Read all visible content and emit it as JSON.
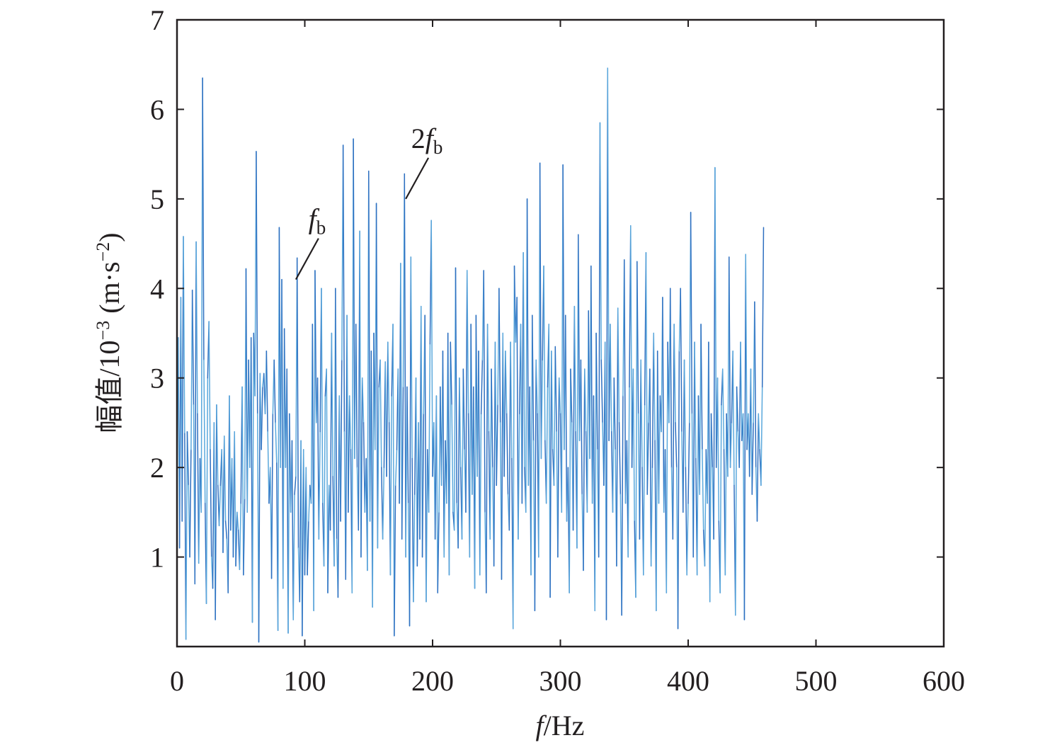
{
  "chart_data": {
    "type": "line",
    "title": "",
    "xlabel": {
      "italic": "f",
      "rest": "/Hz"
    },
    "ylabel": {
      "main": "幅值/10",
      "exp": "−3",
      "unit_open": " (m·s",
      "unit_exp": "−2",
      "unit_close": ")"
    },
    "xlim": [
      0,
      600
    ],
    "ylim": [
      0,
      7
    ],
    "xticks": [
      0,
      100,
      200,
      300,
      400,
      500,
      600
    ],
    "yticks": [
      1,
      2,
      3,
      4,
      5,
      6,
      7
    ],
    "grid": false,
    "legend": "none",
    "colors": {
      "dark": "#2e6fc0",
      "light": "#5aa8dc",
      "axis": "#231f20"
    },
    "annotations": [
      {
        "base": "",
        "italic": "f",
        "sub": "b",
        "x": 93,
        "y": 4.1
      },
      {
        "base": "2",
        "italic": "f",
        "sub": "b",
        "x": 179,
        "y": 5.0
      }
    ],
    "series": [
      {
        "x_step": 1.0,
        "y": [
          1.72,
          3.45,
          1.1,
          3.9,
          1.4,
          4.58,
          2.38,
          0.08,
          2.4,
          1.8,
          1.0,
          2.2,
          3.98,
          2.7,
          0.7,
          4.52,
          2.6,
          0.93,
          2.1,
          1.5,
          6.35,
          3.2,
          1.6,
          0.48,
          3.0,
          3.63,
          2.2,
          1.0,
          0.65,
          2.5,
          0.3,
          2.7,
          1.8,
          1.35,
          1.8,
          2.2,
          1.05,
          2.35,
          1.4,
          1.2,
          0.6,
          2.8,
          1.3,
          2.1,
          1.0,
          2.4,
          0.9,
          1.5,
          1.3,
          0.86,
          1.6,
          2.9,
          0.8,
          1.65,
          4.22,
          1.5,
          3.2,
          2.0,
          3.45,
          0.27,
          3.5,
          2.8,
          5.53,
          2.6,
          0.05,
          3.05,
          2.2,
          2.9,
          3.05,
          2.6,
          3.3,
          2.4,
          1.6,
          2.0,
          0.76,
          2.6,
          3.2,
          2.5,
          2.05,
          0.18,
          4.68,
          2.0,
          4.1,
          0.65,
          3.55,
          2.0,
          3.1,
          0.15,
          2.6,
          1.5,
          2.3,
          0.3,
          1.7,
          1.9,
          4.34,
          1.1,
          0.5,
          2.3,
          0.12,
          2.2,
          0.8,
          2.0,
          0.8,
          1.4,
          1.8,
          1.6,
          3.6,
          0.4,
          4.2,
          2.5,
          3.0,
          1.2,
          2.4,
          4.0,
          1.6,
          0.9,
          2.8,
          3.1,
          0.6,
          1.8,
          1.3,
          3.5,
          1.9,
          0.9,
          4.0,
          1.2,
          0.55,
          2.8,
          1.4,
          3.2,
          5.6,
          2.4,
          0.75,
          3.7,
          1.5,
          2.8,
          2.2,
          0.6,
          5.67,
          2.1,
          3.6,
          2.0,
          1.3,
          4.64,
          1.0,
          3.0,
          2.5,
          1.5,
          2.1,
          0.85,
          5.31,
          1.4,
          3.3,
          0.44,
          3.5,
          2.2,
          4.95,
          1.1,
          2.9,
          3.2,
          2.0,
          1.2,
          2.0,
          3.18,
          1.9,
          3.4,
          2.5,
          0.8,
          2.8,
          3.6,
          0.12,
          1.8,
          2.2,
          3.1,
          1.6,
          4.28,
          1.2,
          2.9,
          5.28,
          1.0,
          2.9,
          1.6,
          0.23,
          4.35,
          2.1,
          0.5,
          1.7,
          3.0,
          0.9,
          2.5,
          1.2,
          3.8,
          1.0,
          2.6,
          3.7,
          0.5,
          2.2,
          1.5,
          3.38,
          4.76,
          1.9,
          2.5,
          1.2,
          2.8,
          0.6,
          1.5,
          2.9,
          1.8,
          3.3,
          1.0,
          2.3,
          1.6,
          3.5,
          0.8,
          3.4,
          2.7,
          1.5,
          1.3,
          4.23,
          1.6,
          1.1,
          3.0,
          2.0,
          1.2,
          3.1,
          2.2,
          1.5,
          4.2,
          2.6,
          1.0,
          3.6,
          1.7,
          2.9,
          0.65,
          3.7,
          1.9,
          3.3,
          0.8,
          2.6,
          3.2,
          4.2,
          1.5,
          0.6,
          3.6,
          2.4,
          1.2,
          3.1,
          2.0,
          0.9,
          3.4,
          1.8,
          2.7,
          4.0,
          2.5,
          0.75,
          3.5,
          1.9,
          3.3,
          2.6,
          1.7,
          1.3,
          3.4,
          2.1,
          0.2,
          4.25,
          3.4,
          3.9,
          1.2,
          2.6,
          3.6,
          1.6,
          4.4,
          2.0,
          1.5,
          5.0,
          1.8,
          2.9,
          0.8,
          3.7,
          2.3,
          0.4,
          3.2,
          2.6,
          1.0,
          5.4,
          2.1,
          3.2,
          4.25,
          2.3,
          1.6,
          2.9,
          3.6,
          0.55,
          3.3,
          2.2,
          1.8,
          3.35,
          2.4,
          1.0,
          3.0,
          2.6,
          1.5,
          5.38,
          2.2,
          3.7,
          1.4,
          2.0,
          0.6,
          3.1,
          2.5,
          1.3,
          3.8,
          2.4,
          1.1,
          4.6,
          2.3,
          3.2,
          1.7,
          0.85,
          3.1,
          2.4,
          1.5,
          3.75,
          2.1,
          4.25,
          1.6,
          2.8,
          0.4,
          3.5,
          2.2,
          1.0,
          5.85,
          3.2,
          2.5,
          1.8,
          3.4,
          0.3,
          6.46,
          2.3,
          3.6,
          2.4,
          1.5,
          3.0,
          2.2,
          0.9,
          3.78,
          2.5,
          1.7,
          0.35,
          2.8,
          4.32,
          1.6,
          2.3,
          1.0,
          2.9,
          4.7,
          2.0,
          3.1,
          1.4,
          0.55,
          4.3,
          2.6,
          1.2,
          3.2,
          2.0,
          0.8,
          2.7,
          4.4,
          1.7,
          2.5,
          3.1,
          0.9,
          2.0,
          3.5,
          2.3,
          0.4,
          3.3,
          1.6,
          2.8,
          2.4,
          3.9,
          1.5,
          2.2,
          0.6,
          3.4,
          2.5,
          4.0,
          2.0,
          1.2,
          3.6,
          2.5,
          2.0,
          0.2,
          3.3,
          4.0,
          2.4,
          1.5,
          3.2,
          2.0,
          0.8,
          1.6,
          2.5,
          4.85,
          2.6,
          1.0,
          3.4,
          2.1,
          0.8,
          2.8,
          1.7,
          3.6,
          2.2,
          1.3,
          0.9,
          2.2,
          1.6,
          3.4,
          0.5,
          2.6,
          2.0,
          1.2,
          5.35,
          2.0,
          3.0,
          1.4,
          0.6,
          2.7,
          3.1,
          2.2,
          0.8,
          2.6,
          1.9,
          4.35,
          2.0,
          2.5,
          3.3,
          1.8,
          0.35,
          2.9,
          2.4,
          2.0,
          3.4,
          2.3,
          2.6,
          0.3,
          4.38,
          2.2,
          2.6,
          1.9,
          3.1,
          1.7,
          2.5,
          3.85,
          2.0,
          1.4,
          2.6,
          2.2,
          1.8,
          2.9,
          4.68
        ]
      }
    ]
  }
}
